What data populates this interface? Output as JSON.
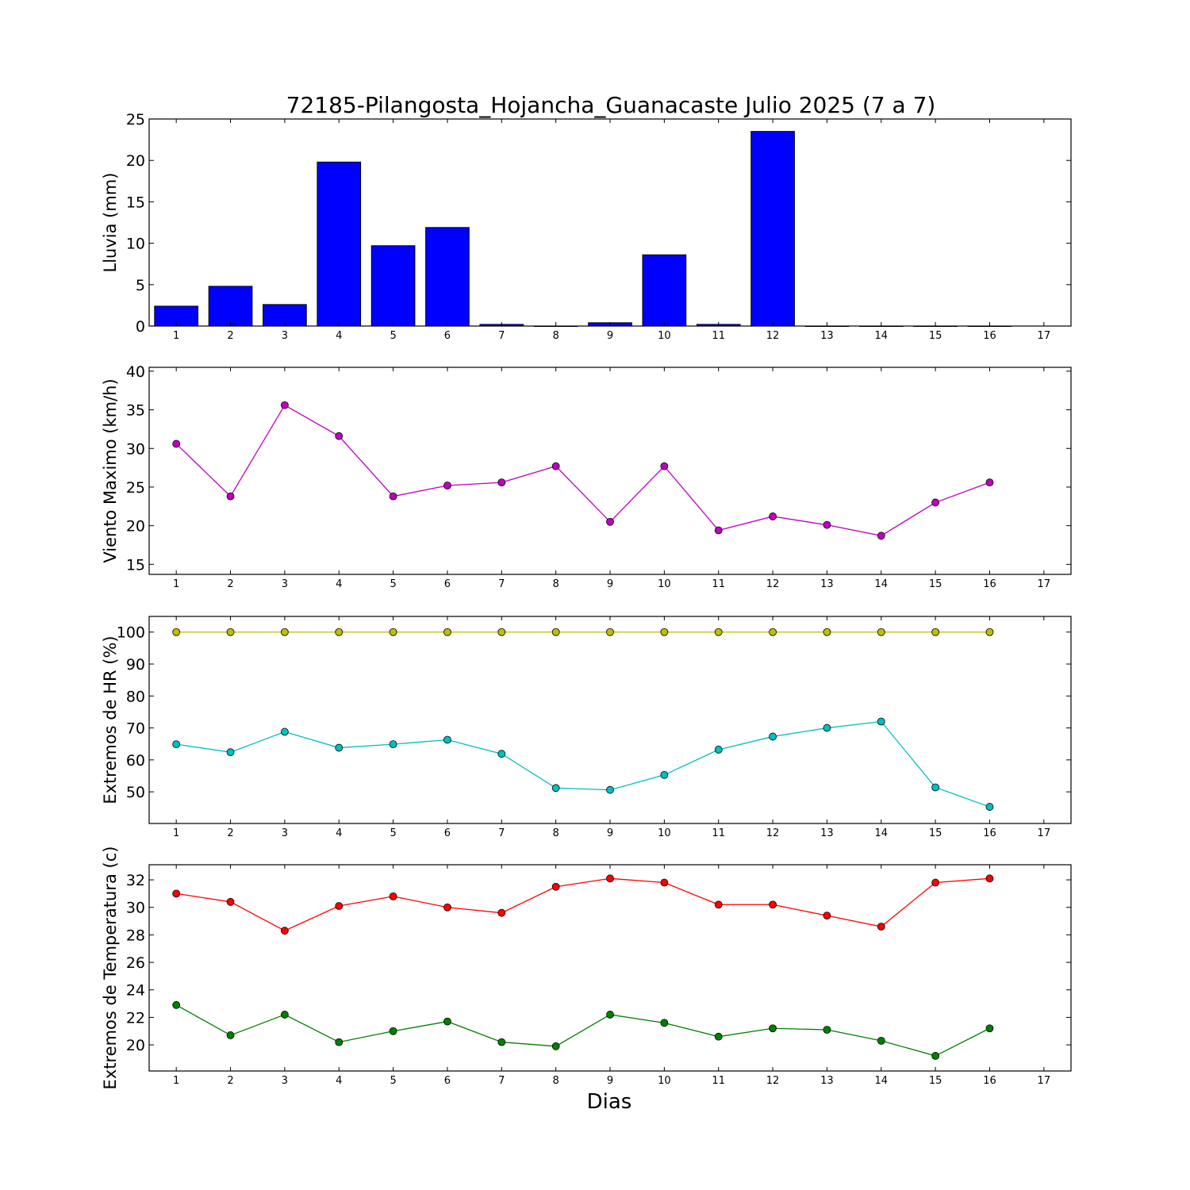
{
  "figure": {
    "title": "72185-Pilangosta_Hojancha_Guanacaste Julio 2025  (7 a 7)",
    "xlabel": "Dias"
  },
  "chart_data": [
    {
      "type": "bar",
      "ylabel": "Lluvia (mm)",
      "x": [
        1,
        2,
        3,
        4,
        5,
        6,
        7,
        8,
        9,
        10,
        11,
        12,
        13,
        14,
        15,
        16
      ],
      "values": [
        2.4,
        4.8,
        2.6,
        19.8,
        9.7,
        11.9,
        0.2,
        0.0,
        0.4,
        8.6,
        0.2,
        23.5,
        0.0,
        0.0,
        0.0,
        0.0
      ],
      "color": "#0000ff",
      "xlim": [
        0.5,
        17.5
      ],
      "xticks": [
        1,
        2,
        3,
        4,
        5,
        6,
        7,
        8,
        9,
        10,
        11,
        12,
        13,
        14,
        15,
        16,
        17
      ],
      "ylim": [
        0,
        25
      ],
      "yticks": [
        0,
        5,
        10,
        15,
        20,
        25
      ]
    },
    {
      "type": "line",
      "ylabel": "Viento Maximo (km/h)",
      "x": [
        1,
        2,
        3,
        4,
        5,
        6,
        7,
        8,
        9,
        10,
        11,
        12,
        13,
        14,
        15,
        16
      ],
      "series": [
        {
          "values": [
            30.6,
            23.8,
            35.6,
            31.6,
            23.8,
            25.2,
            25.6,
            27.7,
            20.5,
            27.7,
            19.4,
            21.2,
            20.1,
            18.7,
            23.0,
            25.6
          ],
          "color": "#bf00bf"
        }
      ],
      "xlim": [
        0.5,
        17.5
      ],
      "xticks": [
        1,
        2,
        3,
        4,
        5,
        6,
        7,
        8,
        9,
        10,
        11,
        12,
        13,
        14,
        15,
        16,
        17
      ],
      "ylim": [
        13.7,
        40.5
      ],
      "yticks": [
        15,
        20,
        25,
        30,
        35,
        40
      ]
    },
    {
      "type": "line",
      "ylabel": "Extremos de HR (%)",
      "x": [
        1,
        2,
        3,
        4,
        5,
        6,
        7,
        8,
        9,
        10,
        11,
        12,
        13,
        14,
        15,
        16
      ],
      "series": [
        {
          "values": [
            100,
            100,
            100,
            100,
            100,
            100,
            100,
            100,
            100,
            100,
            100,
            100,
            100,
            100,
            100,
            100
          ],
          "color": "#bfbf00"
        },
        {
          "values": [
            64.9,
            62.4,
            68.8,
            63.8,
            64.9,
            66.3,
            61.9,
            51.2,
            50.6,
            55.3,
            63.2,
            67.3,
            70.0,
            72.0,
            51.4,
            45.3
          ],
          "color": "#00bfbf"
        }
      ],
      "xlim": [
        0.5,
        17.5
      ],
      "xticks": [
        1,
        2,
        3,
        4,
        5,
        6,
        7,
        8,
        9,
        10,
        11,
        12,
        13,
        14,
        15,
        16,
        17
      ],
      "ylim": [
        40.1,
        104.9
      ],
      "yticks": [
        50,
        60,
        70,
        80,
        90,
        100
      ]
    },
    {
      "type": "line",
      "ylabel": "Extremos de Temperatura (c)",
      "x": [
        1,
        2,
        3,
        4,
        5,
        6,
        7,
        8,
        9,
        10,
        11,
        12,
        13,
        14,
        15,
        16
      ],
      "series": [
        {
          "values": [
            31.0,
            30.4,
            28.3,
            30.1,
            30.8,
            30.0,
            29.6,
            31.5,
            32.1,
            31.8,
            30.2,
            30.2,
            29.4,
            28.6,
            31.8,
            32.1
          ],
          "color": "#ff0000"
        },
        {
          "values": [
            22.9,
            20.7,
            22.2,
            20.2,
            21.0,
            21.7,
            20.2,
            19.9,
            22.2,
            21.6,
            20.6,
            21.2,
            21.1,
            20.3,
            19.2,
            21.2
          ],
          "color": "#008000"
        }
      ],
      "xlim": [
        0.5,
        17.5
      ],
      "xticks": [
        1,
        2,
        3,
        4,
        5,
        6,
        7,
        8,
        9,
        10,
        11,
        12,
        13,
        14,
        15,
        16,
        17
      ],
      "ylim": [
        18.1,
        33.1
      ],
      "yticks": [
        20,
        22,
        24,
        26,
        28,
        30,
        32
      ]
    }
  ]
}
